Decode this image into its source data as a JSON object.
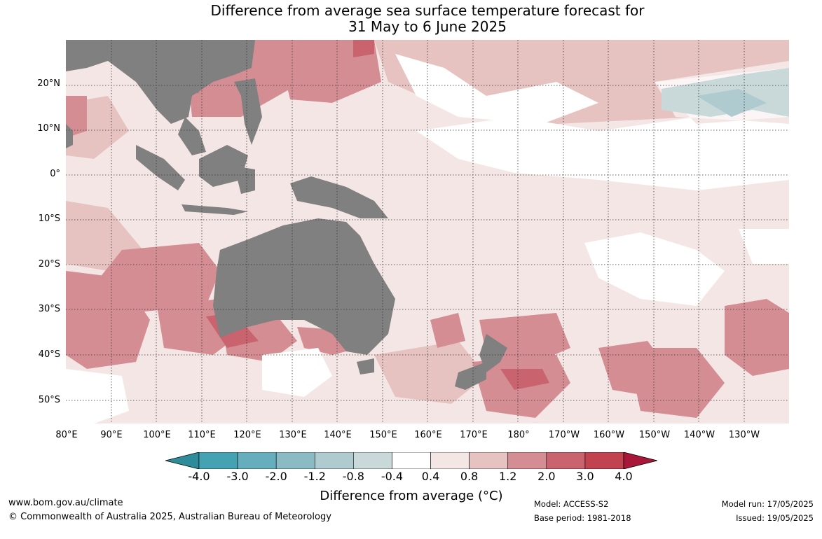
{
  "title": {
    "line1": "Difference from average sea surface temperature forecast for",
    "line2": "31 May to 6 June 2025"
  },
  "map": {
    "lat_labels": [
      "20°N",
      "10°N",
      "0°",
      "10°S",
      "20°S",
      "30°S",
      "40°S",
      "50°S"
    ],
    "lon_labels": [
      "80°E",
      "90°E",
      "100°E",
      "110°E",
      "120°E",
      "130°E",
      "140°E",
      "150°E",
      "160°E",
      "170°E",
      "180°",
      "170°W",
      "160°W",
      "150°W",
      "140°W",
      "130°W"
    ],
    "land_color": "#808080"
  },
  "colorbar": {
    "ticks": [
      "-4.0",
      "-3.0",
      "-2.0",
      "-1.2",
      "-0.8",
      "-0.4",
      "0.4",
      "0.8",
      "1.2",
      "2.0",
      "3.0",
      "4.0"
    ],
    "colors": [
      "#2e8b9a",
      "#44a2b3",
      "#66adbd",
      "#8abbc4",
      "#afcbcf",
      "#c9d9da",
      "#ffffff",
      "#f4e6e5",
      "#e6c3c0",
      "#d58d94",
      "#c9646f",
      "#c0434f",
      "#a8173a"
    ],
    "label": "Difference from average (°C)"
  },
  "footer": {
    "website": "www.bom.gov.au/climate",
    "copyright": "© Commonwealth of Australia 2025, Australian Bureau of Meteorology",
    "model": "Model: ACCESS-S2",
    "base_period": "Base period: 1981-2018",
    "model_run": "Model run: 17/05/2025",
    "issued": "Issued: 19/05/2025"
  }
}
